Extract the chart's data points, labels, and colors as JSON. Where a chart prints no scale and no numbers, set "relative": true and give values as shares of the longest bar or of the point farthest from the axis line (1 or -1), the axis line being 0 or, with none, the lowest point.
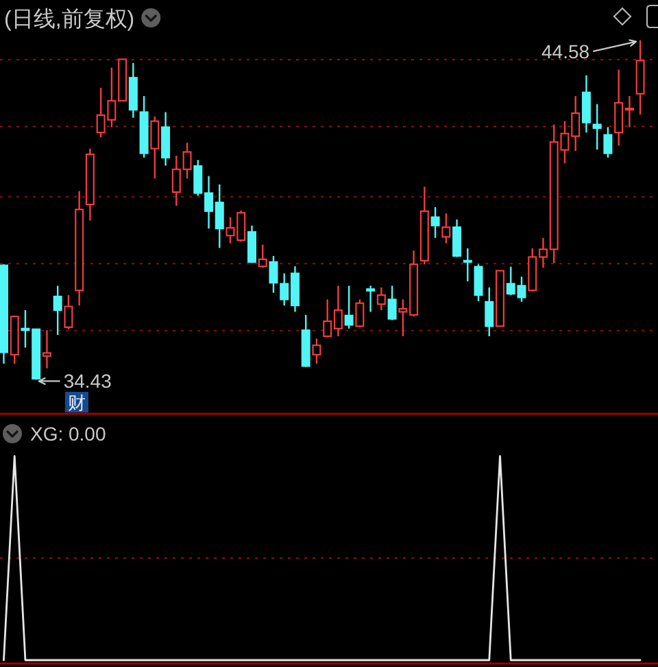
{
  "chart_data": [
    {
      "type": "candlestick",
      "title": "(日线,前复权)",
      "categories": [
        null,
        null,
        null,
        null,
        null,
        null,
        null,
        null,
        null,
        null,
        null,
        null,
        null,
        null,
        null,
        null,
        null,
        null,
        null,
        null,
        null,
        null,
        null,
        null,
        null,
        null,
        null,
        null,
        null,
        null,
        null,
        null,
        null,
        null,
        null,
        null,
        null,
        null,
        null,
        null,
        null,
        null,
        null,
        null,
        null,
        null,
        null,
        null,
        null,
        null,
        null,
        null,
        null,
        null,
        null,
        null,
        null,
        null,
        null,
        null
      ],
      "ohlc": [
        [
          37.85,
          37.88,
          34.91,
          35.25
        ],
        [
          35.18,
          36.35,
          34.91,
          36.32
        ],
        [
          35.96,
          36.51,
          35.39,
          35.91
        ],
        [
          35.94,
          35.94,
          34.43,
          34.46
        ],
        [
          35.14,
          35.91,
          34.77,
          35.23
        ],
        [
          36.92,
          37.24,
          35.77,
          36.51
        ],
        [
          36.0,
          36.96,
          35.94,
          36.62
        ],
        [
          37.1,
          40.07,
          36.65,
          39.52
        ],
        [
          39.67,
          41.34,
          39.19,
          41.17
        ],
        [
          41.82,
          43.16,
          41.68,
          42.34
        ],
        [
          42.2,
          43.76,
          41.98,
          42.77
        ],
        [
          42.77,
          44.01,
          42.77,
          44.01
        ],
        [
          43.46,
          43.9,
          42.26,
          42.5
        ],
        [
          42.43,
          42.91,
          41.07,
          41.2
        ],
        [
          41.34,
          42.3,
          40.45,
          42.16
        ],
        [
          41.98,
          42.43,
          40.83,
          41.07
        ],
        [
          40.04,
          41.13,
          39.63,
          40.72
        ],
        [
          40.72,
          41.52,
          40.45,
          41.24
        ],
        [
          40.82,
          41.0,
          39.93,
          40.01
        ],
        [
          40.01,
          40.52,
          38.95,
          39.47
        ],
        [
          39.73,
          40.27,
          38.37,
          38.95
        ],
        [
          38.74,
          39.29,
          38.51,
          38.97
        ],
        [
          38.6,
          39.49,
          38.56,
          39.42
        ],
        [
          38.85,
          39.04,
          37.92,
          37.95
        ],
        [
          37.82,
          38.47,
          37.78,
          38.03
        ],
        [
          37.95,
          38.13,
          37.03,
          37.33
        ],
        [
          37.3,
          37.61,
          36.65,
          36.83
        ],
        [
          37.61,
          37.82,
          36.46,
          36.65
        ],
        [
          35.91,
          36.37,
          34.81,
          34.84
        ],
        [
          35.18,
          35.66,
          34.91,
          35.46
        ],
        [
          35.73,
          36.83,
          35.7,
          36.18
        ],
        [
          35.96,
          37.24,
          35.73,
          36.51
        ],
        [
          36.35,
          37.24,
          35.96,
          36.07
        ],
        [
          36.03,
          36.83,
          36.0,
          36.72
        ],
        [
          37.14,
          37.24,
          36.46,
          37.09
        ],
        [
          36.69,
          37.19,
          36.51,
          36.96
        ],
        [
          36.83,
          37.24,
          36.21,
          36.25
        ],
        [
          36.46,
          36.83,
          35.73,
          36.55
        ],
        [
          36.37,
          38.29,
          36.32,
          37.88
        ],
        [
          37.99,
          40.2,
          37.88,
          39.47
        ],
        [
          39.29,
          39.59,
          38.67,
          39.04
        ],
        [
          38.7,
          39.4,
          38.51,
          38.99
        ],
        [
          38.99,
          39.22,
          38.1,
          38.13
        ],
        [
          37.99,
          38.36,
          37.37,
          37.95
        ],
        [
          37.81,
          37.88,
          36.78,
          36.96
        ],
        [
          36.76,
          37.19,
          35.73,
          36.03
        ],
        [
          36.03,
          37.69,
          36.03,
          37.69
        ],
        [
          37.3,
          37.81,
          36.96,
          37.0
        ],
        [
          37.24,
          37.51,
          36.76,
          36.89
        ],
        [
          37.1,
          38.36,
          37.07,
          38.1
        ],
        [
          38.1,
          38.67,
          37.78,
          38.33
        ],
        [
          38.33,
          42.06,
          37.92,
          41.54
        ],
        [
          41.3,
          42.16,
          40.9,
          41.79
        ],
        [
          41.71,
          42.91,
          41.27,
          42.4
        ],
        [
          43.02,
          43.53,
          41.82,
          42.12
        ],
        [
          42.06,
          42.67,
          41.31,
          41.95
        ],
        [
          41.75,
          41.98,
          41.07,
          41.2
        ],
        [
          41.82,
          43.7,
          41.43,
          42.71
        ],
        [
          42.5,
          42.91,
          41.98,
          42.54
        ],
        [
          42.98,
          44.58,
          42.36,
          43.97
        ]
      ],
      "colors": [
        "#52f5f5",
        "#f23c3c",
        "#52f5f5",
        "#52f5f5",
        "#f23c3c",
        "#52f5f5",
        "#f23c3c",
        "#f23c3c",
        "#f23c3c",
        "#f23c3c",
        "#f23c3c",
        "#f23c3c",
        "#52f5f5",
        "#52f5f5",
        "#f23c3c",
        "#52f5f5",
        "#f23c3c",
        "#f23c3c",
        "#52f5f5",
        "#52f5f5",
        "#52f5f5",
        "#f23c3c",
        "#f23c3c",
        "#52f5f5",
        "#f23c3c",
        "#52f5f5",
        "#52f5f5",
        "#52f5f5",
        "#52f5f5",
        "#f23c3c",
        "#f23c3c",
        "#f23c3c",
        "#52f5f5",
        "#f23c3c",
        "#52f5f5",
        "#f23c3c",
        "#52f5f5",
        "#f23c3c",
        "#f23c3c",
        "#f23c3c",
        "#52f5f5",
        "#f23c3c",
        "#52f5f5",
        "#52f5f5",
        "#52f5f5",
        "#52f5f5",
        "#f23c3c",
        "#52f5f5",
        "#52f5f5",
        "#f23c3c",
        "#f23c3c",
        "#f23c3c",
        "#f23c3c",
        "#f23c3c",
        "#52f5f5",
        "#52f5f5",
        "#52f5f5",
        "#f23c3c",
        "#f23c3c",
        "#f23c3c"
      ],
      "yticks": [
        {
          "value": 44.0,
          "label": null
        },
        {
          "value": 42.0,
          "label": null
        },
        {
          "value": 39.9,
          "label": null
        },
        {
          "value": 37.9,
          "label": null
        },
        {
          "value": 35.9,
          "label": null
        }
      ],
      "grid": "y",
      "annotations": [
        "44.58",
        "34.43",
        "财"
      ]
    },
    {
      "type": "line",
      "title": "XG: 0.00",
      "relative": true,
      "categories": [
        null,
        null,
        null,
        null,
        null,
        null,
        null,
        null,
        null,
        null,
        null,
        null,
        null,
        null,
        null,
        null,
        null,
        null,
        null,
        null,
        null,
        null,
        null,
        null,
        null,
        null,
        null,
        null,
        null,
        null,
        null,
        null,
        null,
        null,
        null,
        null,
        null,
        null,
        null,
        null,
        null,
        null,
        null,
        null,
        null,
        null,
        null,
        null,
        null,
        null,
        null,
        null,
        null,
        null,
        null,
        null,
        null,
        null,
        null,
        null
      ],
      "series": [
        {
          "color": "#e6e6e6",
          "values": [
            0,
            1,
            0,
            0,
            0,
            0,
            0,
            0,
            0,
            0,
            0,
            0,
            0,
            0,
            0,
            0,
            0,
            0,
            0,
            0,
            0,
            0,
            0,
            0,
            0,
            0,
            0,
            0,
            0,
            0,
            0,
            0,
            0,
            0,
            0,
            0,
            0,
            0,
            0,
            0,
            0,
            0,
            0,
            0,
            0,
            0,
            1,
            0,
            0,
            0,
            0,
            0,
            0,
            0,
            0,
            0,
            0,
            0,
            0,
            0
          ]
        }
      ],
      "ref_lines": [
        {
          "axis": "y",
          "value": 0.5,
          "color": "#8a0f0f",
          "line_style": "dotted"
        }
      ]
    }
  ]
}
